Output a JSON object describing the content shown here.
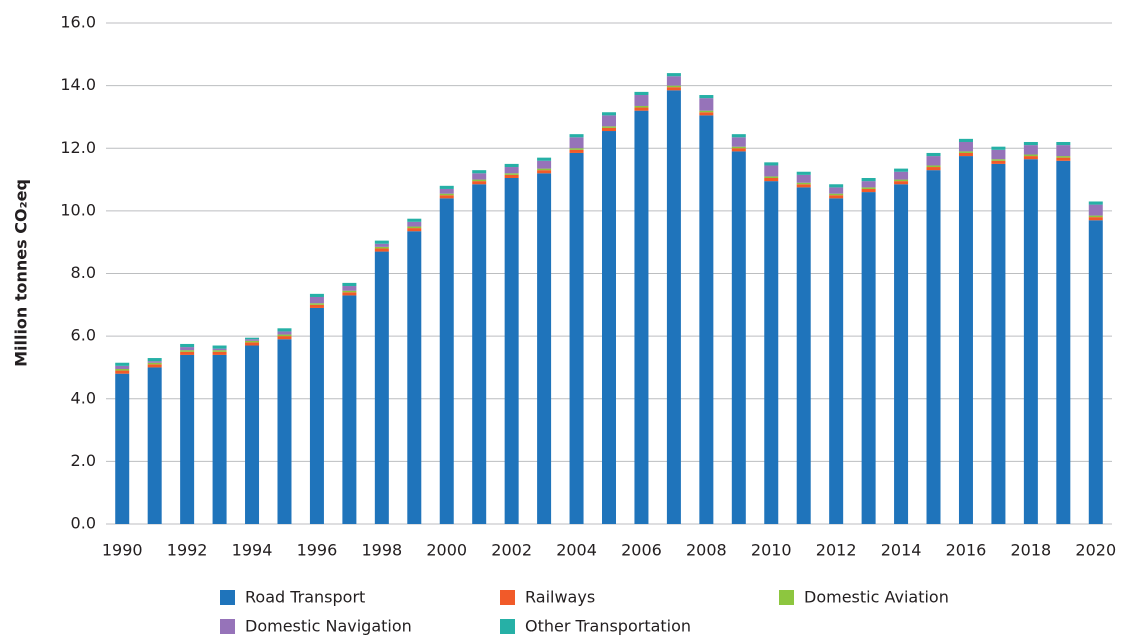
{
  "chart_data": {
    "type": "stacked_bar",
    "y_label": "Million tonnes CO₂eq",
    "categories": [
      "1990",
      null,
      "1992",
      null,
      "1994",
      null,
      "1996",
      null,
      "1998",
      null,
      "2000",
      null,
      "2002",
      null,
      "2004",
      null,
      "2006",
      null,
      "2008",
      null,
      "2010",
      null,
      "2012",
      null,
      "2014",
      null,
      "2016",
      null,
      "2018",
      null,
      "2020"
    ],
    "series": [
      {
        "name": "Road Transport",
        "color": "#1f74bb",
        "values": [
          4.8,
          5.0,
          5.4,
          5.4,
          5.7,
          5.9,
          6.9,
          7.3,
          8.7,
          9.35,
          10.4,
          10.85,
          11.05,
          11.2,
          11.85,
          12.55,
          13.2,
          13.85,
          13.05,
          11.9,
          10.95,
          10.75,
          10.4,
          10.6,
          10.85,
          11.3,
          11.75,
          11.5,
          11.65,
          11.6,
          9.7
        ]
      },
      {
        "name": "Railways",
        "color": "#f15a29",
        "values": [
          0.1,
          0.1,
          0.1,
          0.1,
          0.1,
          0.1,
          0.1,
          0.1,
          0.1,
          0.1,
          0.1,
          0.1,
          0.1,
          0.1,
          0.1,
          0.1,
          0.1,
          0.1,
          0.1,
          0.1,
          0.1,
          0.1,
          0.1,
          0.1,
          0.1,
          0.1,
          0.1,
          0.1,
          0.1,
          0.1,
          0.1
        ]
      },
      {
        "name": "Domestic Aviation",
        "color": "#8dc63f",
        "values": [
          0.05,
          0.05,
          0.05,
          0.05,
          0.05,
          0.05,
          0.05,
          0.05,
          0.05,
          0.05,
          0.05,
          0.05,
          0.05,
          0.05,
          0.05,
          0.05,
          0.05,
          0.05,
          0.05,
          0.05,
          0.05,
          0.05,
          0.05,
          0.05,
          0.05,
          0.05,
          0.05,
          0.05,
          0.05,
          0.05,
          0.05
        ]
      },
      {
        "name": "Domestic Navigation",
        "color": "#9673b9",
        "values": [
          0.1,
          0.05,
          0.1,
          0.05,
          0.05,
          0.1,
          0.2,
          0.15,
          0.1,
          0.15,
          0.15,
          0.2,
          0.2,
          0.25,
          0.35,
          0.35,
          0.35,
          0.3,
          0.4,
          0.3,
          0.35,
          0.25,
          0.2,
          0.2,
          0.25,
          0.3,
          0.3,
          0.3,
          0.3,
          0.35,
          0.35
        ]
      },
      {
        "name": "Other Transportation",
        "color": "#26b0a6",
        "values": [
          0.1,
          0.1,
          0.1,
          0.1,
          0.05,
          0.1,
          0.1,
          0.1,
          0.1,
          0.1,
          0.1,
          0.1,
          0.1,
          0.1,
          0.1,
          0.1,
          0.1,
          0.1,
          0.1,
          0.1,
          0.1,
          0.1,
          0.1,
          0.1,
          0.1,
          0.1,
          0.1,
          0.1,
          0.1,
          0.1,
          0.1
        ]
      }
    ],
    "ylim": [
      0,
      16
    ],
    "yticks": [
      {
        "value": 0,
        "label": "0.0"
      },
      {
        "value": 2,
        "label": "2.0"
      },
      {
        "value": 4,
        "label": "4.0"
      },
      {
        "value": 6,
        "label": "6.0"
      },
      {
        "value": 8,
        "label": "8.0"
      },
      {
        "value": 10,
        "label": "10.0"
      },
      {
        "value": 12,
        "label": "12.0"
      },
      {
        "value": 14,
        "label": "14.0"
      },
      {
        "value": 16,
        "label": "16.0"
      }
    ],
    "grid": true
  }
}
